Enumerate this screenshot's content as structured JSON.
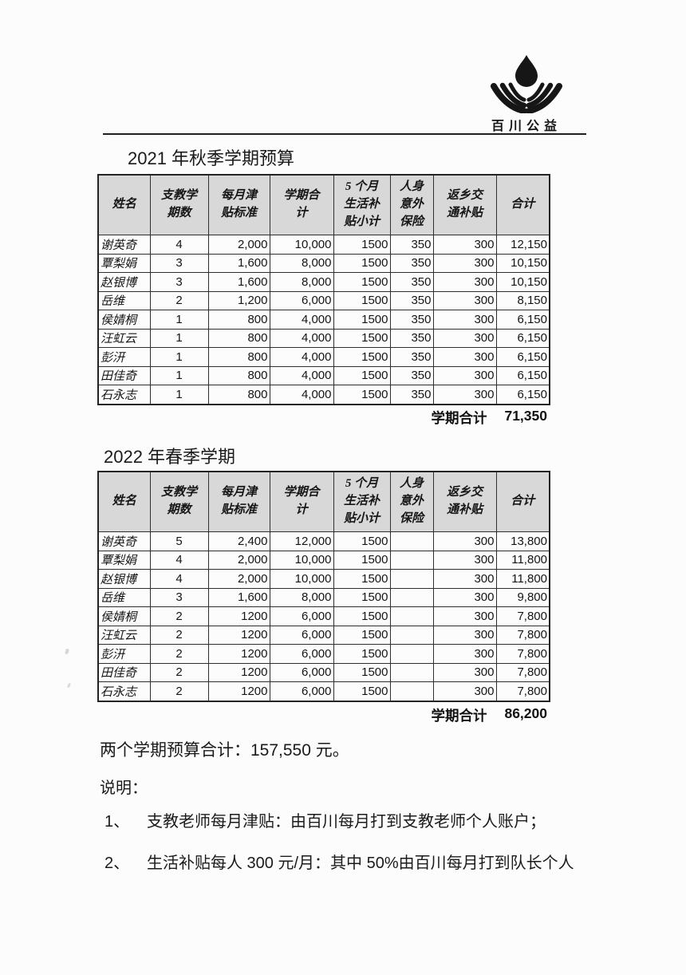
{
  "logo": {
    "text": "百川公益",
    "icon": "drop-and-leaves-icon"
  },
  "table_headers": [
    "姓名",
    "支教学期数",
    "每月津贴标准",
    "学期合计",
    "5 个月生活补贴小计",
    "人身意外保险",
    "返乡交通补贴",
    "合计"
  ],
  "sections": [
    {
      "title": "2021 年秋季学期预算",
      "rows": [
        [
          "谢英奇",
          "4",
          "2,000",
          "10,000",
          "1500",
          "350",
          "300",
          "12,150"
        ],
        [
          "覃梨娟",
          "3",
          "1,600",
          "8,000",
          "1500",
          "350",
          "300",
          "10,150"
        ],
        [
          "赵银博",
          "3",
          "1,600",
          "8,000",
          "1500",
          "350",
          "300",
          "10,150"
        ],
        [
          "岳维",
          "2",
          "1,200",
          "6,000",
          "1500",
          "350",
          "300",
          "8,150"
        ],
        [
          "侯婧桐",
          "1",
          "800",
          "4,000",
          "1500",
          "350",
          "300",
          "6,150"
        ],
        [
          "汪虹云",
          "1",
          "800",
          "4,000",
          "1500",
          "350",
          "300",
          "6,150"
        ],
        [
          "彭汧",
          "1",
          "800",
          "4,000",
          "1500",
          "350",
          "300",
          "6,150"
        ],
        [
          "田佳奇",
          "1",
          "800",
          "4,000",
          "1500",
          "350",
          "300",
          "6,150"
        ],
        [
          "石永志",
          "1",
          "800",
          "4,000",
          "1500",
          "350",
          "300",
          "6,150"
        ]
      ],
      "total_label": "学期合计",
      "total_value": "71,350"
    },
    {
      "title": "2022 年春季学期",
      "rows": [
        [
          "谢英奇",
          "5",
          "2,400",
          "12,000",
          "1500",
          "",
          "300",
          "13,800"
        ],
        [
          "覃梨娟",
          "4",
          "2,000",
          "10,000",
          "1500",
          "",
          "300",
          "11,800"
        ],
        [
          "赵银博",
          "4",
          "2,000",
          "10,000",
          "1500",
          "",
          "300",
          "11,800"
        ],
        [
          "岳维",
          "3",
          "1,600",
          "8,000",
          "1500",
          "",
          "300",
          "9,800"
        ],
        [
          "侯婧桐",
          "2",
          "1200",
          "6,000",
          "1500",
          "",
          "300",
          "7,800"
        ],
        [
          "汪虹云",
          "2",
          "1200",
          "6,000",
          "1500",
          "",
          "300",
          "7,800"
        ],
        [
          "彭汧",
          "2",
          "1200",
          "6,000",
          "1500",
          "",
          "300",
          "7,800"
        ],
        [
          "田佳奇",
          "2",
          "1200",
          "6,000",
          "1500",
          "",
          "300",
          "7,800"
        ],
        [
          "石永志",
          "2",
          "1200",
          "6,000",
          "1500",
          "",
          "300",
          "7,800"
        ]
      ],
      "total_label": "学期合计",
      "total_value": "86,200"
    }
  ],
  "summary": "两个学期预算合计：157,550 元。",
  "notes_label": "说明：",
  "notes": [
    {
      "num": "1、",
      "text": "支教老师每月津贴：由百川每月打到支教老师个人账户；"
    },
    {
      "num": "2、",
      "text": "生活补贴每人 300 元/月：其中 50%由百川每月打到队长个人"
    }
  ],
  "colors": {
    "header_bg": "#d8d8d8",
    "border": "#2e2e2e",
    "text": "#1c1c1c"
  }
}
